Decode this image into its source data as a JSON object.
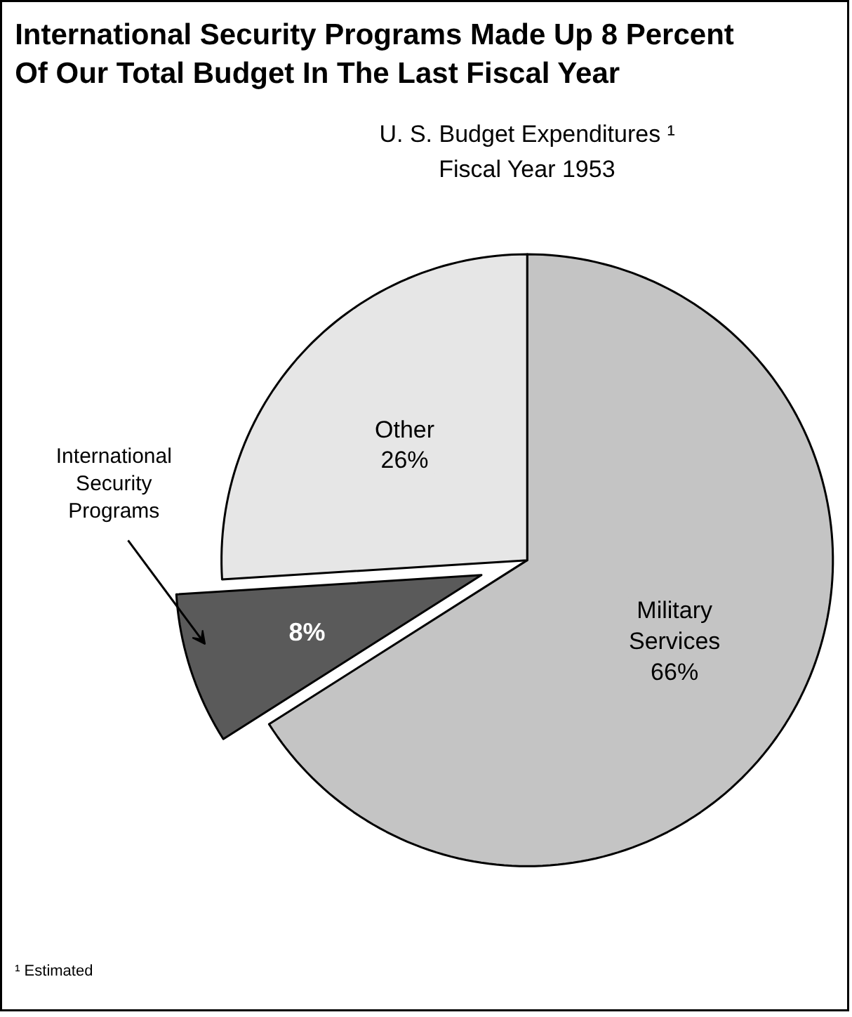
{
  "chart_data": {
    "type": "pie",
    "title": "International Security Programs Made Up 8 Percent\nOf Our Total Budget In The Last Fiscal Year",
    "subtitle": "U. S. Budget Expenditures ¹\nFiscal Year 1953",
    "categories": [
      "Military Services",
      "International Security Programs",
      "Other"
    ],
    "values": [
      66,
      8,
      26
    ],
    "value_labels": [
      "66%",
      "8%",
      "26%"
    ],
    "colors": [
      "#c4c4c4",
      "#5a5a5a",
      "#e6e6e6"
    ],
    "annotations": [
      "¹ Estimated"
    ]
  }
}
